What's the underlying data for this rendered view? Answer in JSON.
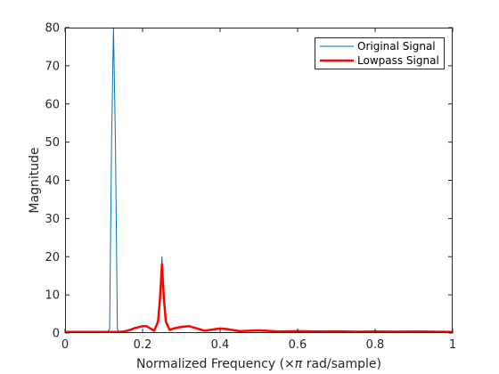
{
  "chart_data": {
    "type": "line",
    "xlabel_prefix": "Normalized Frequency  (",
    "xlabel_symbol": "×π",
    "xlabel_suffix": " rad/sample)",
    "ylabel": "Magnitude",
    "xlim": [
      0,
      1
    ],
    "ylim": [
      0,
      80
    ],
    "xticks": [
      0,
      0.2,
      0.4,
      0.6,
      0.8,
      1
    ],
    "xtick_labels": [
      "0",
      "0.2",
      "0.4",
      "0.6",
      "0.8",
      "1"
    ],
    "yticks": [
      0,
      10,
      20,
      30,
      40,
      50,
      60,
      70,
      80
    ],
    "ytick_labels": [
      "0",
      "10",
      "20",
      "30",
      "40",
      "50",
      "60",
      "70",
      "80"
    ],
    "grid": false,
    "legend_position": "top-right",
    "series": [
      {
        "name": "Original Signal",
        "color": "#0072BD",
        "x": [
          0,
          0.03,
          0.06,
          0.09,
          0.1,
          0.11,
          0.115,
          0.12,
          0.125,
          0.13,
          0.135,
          0.14,
          0.15,
          0.16,
          0.17,
          0.18,
          0.2,
          0.21,
          0.22,
          0.23,
          0.24,
          0.245,
          0.25,
          0.255,
          0.26,
          0.27,
          0.28,
          0.3,
          0.32,
          0.34,
          0.36,
          0.38,
          0.4,
          0.42,
          0.45,
          0.5,
          0.55,
          0.6,
          0.65,
          0.7,
          0.75,
          0.8,
          0.85,
          0.9,
          0.95,
          1.0
        ],
        "y": [
          0.3,
          0.3,
          0.3,
          0.3,
          0.3,
          0.4,
          1,
          50,
          80,
          50,
          1,
          0.3,
          0.4,
          0.6,
          0.9,
          1.3,
          1.8,
          1.8,
          1.2,
          0.6,
          3,
          10,
          20,
          10,
          3,
          0.8,
          1.2,
          1.6,
          1.8,
          1.2,
          0.6,
          0.9,
          1.2,
          1.0,
          0.5,
          0.7,
          0.4,
          0.5,
          0.4,
          0.45,
          0.35,
          0.4,
          0.35,
          0.4,
          0.35,
          0.3
        ]
      },
      {
        "name": "Lowpass Signal",
        "color": "#FF0000",
        "x": [
          0,
          0.03,
          0.06,
          0.09,
          0.1,
          0.11,
          0.115,
          0.12,
          0.125,
          0.13,
          0.135,
          0.14,
          0.15,
          0.16,
          0.17,
          0.18,
          0.2,
          0.21,
          0.22,
          0.23,
          0.24,
          0.245,
          0.25,
          0.255,
          0.26,
          0.27,
          0.28,
          0.3,
          0.32,
          0.34,
          0.36,
          0.38,
          0.4,
          0.42,
          0.45,
          0.5,
          0.55,
          0.6,
          0.65,
          0.7,
          0.75,
          0.8,
          0.85,
          0.9,
          0.95,
          1.0
        ],
        "y": [
          0.3,
          0.3,
          0.3,
          0.3,
          0.3,
          0.3,
          0.3,
          0.3,
          0.3,
          0.3,
          0.3,
          0.3,
          0.4,
          0.6,
          0.9,
          1.3,
          1.8,
          1.8,
          1.2,
          0.6,
          3,
          9,
          18,
          9,
          3,
          0.8,
          1.2,
          1.6,
          1.8,
          1.2,
          0.6,
          0.9,
          1.2,
          1.0,
          0.5,
          0.7,
          0.4,
          0.5,
          0.4,
          0.45,
          0.35,
          0.4,
          0.35,
          0.4,
          0.35,
          0.3
        ]
      }
    ]
  }
}
